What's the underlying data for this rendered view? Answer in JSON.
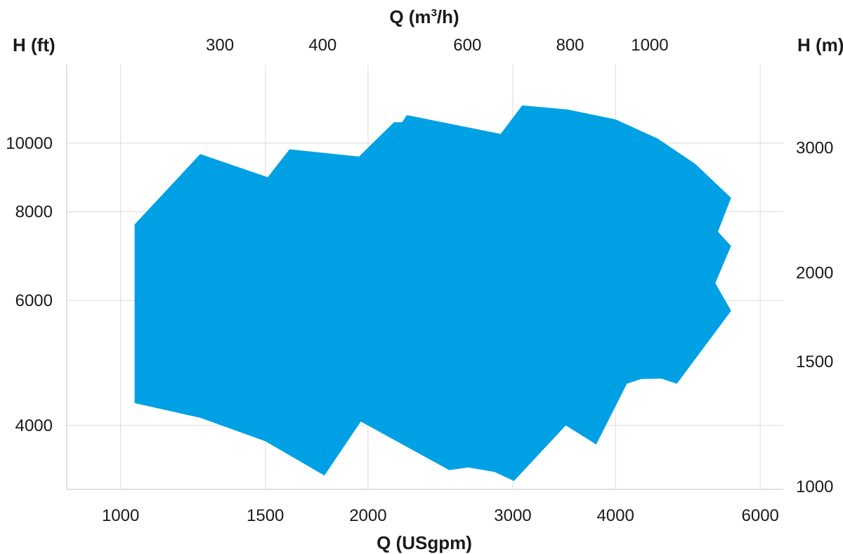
{
  "chart_data": {
    "type": "area",
    "title": "",
    "xlabel_bottom": "Q (USgpm)",
    "xlabel_top_prefix": "Q (m",
    "xlabel_top_sup": "3",
    "xlabel_top_suffix": "/h)",
    "ylabel_left": "H (ft)",
    "ylabel_right": "H (m)",
    "x_scale": "log",
    "y_scale": "log",
    "xlim_usgpm": [
      860,
      6400
    ],
    "ylim_ft": [
      3250,
      12900
    ],
    "grid": true,
    "color": "#00A1E4",
    "x_ticks_bottom": [
      {
        "value": 1000,
        "label": "1000"
      },
      {
        "value": 1500,
        "label": "1500"
      },
      {
        "value": 2000,
        "label": "2000"
      },
      {
        "value": 3000,
        "label": "3000"
      },
      {
        "value": 4000,
        "label": "4000"
      },
      {
        "value": 6000,
        "label": "6000"
      }
    ],
    "x_ticks_top": [
      {
        "value": 300,
        "label": "300"
      },
      {
        "value": 400,
        "label": "400"
      },
      {
        "value": 600,
        "label": "600"
      },
      {
        "value": 800,
        "label": "800"
      },
      {
        "value": 1000,
        "label": "1000"
      }
    ],
    "y_ticks_left": [
      {
        "value": 4000,
        "label": "4000"
      },
      {
        "value": 6000,
        "label": "6000"
      },
      {
        "value": 8000,
        "label": "8000"
      },
      {
        "value": 10000,
        "label": "10000"
      }
    ],
    "y_ticks_right": [
      {
        "value": 1000,
        "label": "1000"
      },
      {
        "value": 1500,
        "label": "1500"
      },
      {
        "value": 2000,
        "label": "2000"
      },
      {
        "value": 3000,
        "label": "3000"
      }
    ],
    "envelope": [
      [
        1040,
        7680
      ],
      [
        1250,
        9650
      ],
      [
        1510,
        8950
      ],
      [
        1605,
        9800
      ],
      [
        1950,
        9570
      ],
      [
        2150,
        10700
      ],
      [
        2200,
        10700
      ],
      [
        2230,
        10950
      ],
      [
        2900,
        10300
      ],
      [
        3080,
        11300
      ],
      [
        3500,
        11150
      ],
      [
        4000,
        10800
      ],
      [
        4500,
        10150
      ],
      [
        5000,
        9350
      ],
      [
        5530,
        8370
      ],
      [
        5330,
        7500
      ],
      [
        5530,
        7160
      ],
      [
        5290,
        6350
      ],
      [
        5530,
        5800
      ],
      [
        4750,
        4580
      ],
      [
        4550,
        4655
      ],
      [
        4300,
        4650
      ],
      [
        4130,
        4580
      ],
      [
        3790,
        3760
      ],
      [
        3480,
        4000
      ],
      [
        3010,
        3340
      ],
      [
        2850,
        3440
      ],
      [
        2650,
        3490
      ],
      [
        2510,
        3460
      ],
      [
        1960,
        4050
      ],
      [
        1770,
        3400
      ],
      [
        1500,
        3800
      ],
      [
        1250,
        4100
      ],
      [
        1040,
        4300
      ]
    ]
  }
}
